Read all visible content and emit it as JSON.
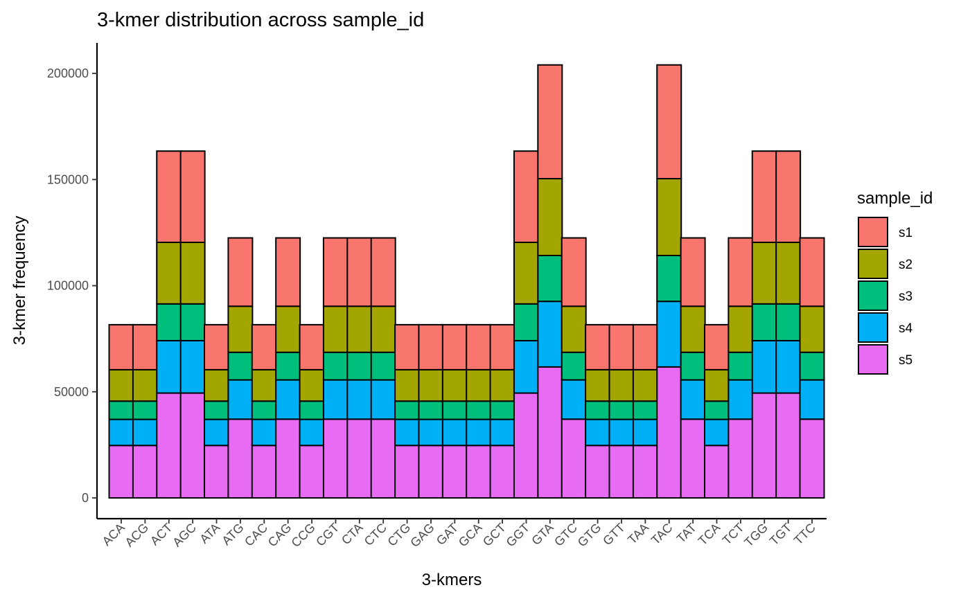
{
  "chart_data": {
    "type": "bar",
    "stacked": true,
    "title": "3-kmer distribution across sample_id",
    "xlabel": "3-kmers",
    "ylabel": "3-kmer frequency",
    "ylim": [
      -10000,
      212000
    ],
    "yticks": [
      0,
      50000,
      100000,
      150000,
      200000
    ],
    "ytick_labels": [
      "0",
      "50000",
      "100000",
      "150000",
      "200000"
    ],
    "grid": false,
    "legend": {
      "title": "sample_id",
      "position": "right"
    },
    "categories": [
      "ACA",
      "ACG",
      "ACT",
      "AGC",
      "ATA",
      "ATG",
      "CAC",
      "CAG",
      "CCG",
      "CGT",
      "CTA",
      "CTC",
      "CTG",
      "GAG",
      "GAT",
      "GCA",
      "GCT",
      "GGT",
      "GTA",
      "GTC",
      "GTG",
      "GTT",
      "TAA",
      "TAC",
      "TAT",
      "TCA",
      "TCT",
      "TGG",
      "TGT",
      "TTC"
    ],
    "series": [
      {
        "name": "s5",
        "color": "#E76BF3",
        "values": [
          24700,
          24700,
          49400,
          49400,
          24700,
          37100,
          24700,
          37100,
          24700,
          37100,
          37100,
          37100,
          24700,
          24700,
          24700,
          24700,
          24700,
          49400,
          61700,
          37100,
          24700,
          24700,
          24700,
          61700,
          37100,
          24700,
          37100,
          49400,
          49400,
          37100
        ]
      },
      {
        "name": "s4",
        "color": "#00B0F6",
        "values": [
          12300,
          12300,
          24700,
          24700,
          12300,
          18500,
          12300,
          18500,
          12300,
          18500,
          18500,
          18500,
          12300,
          12300,
          12300,
          12300,
          12300,
          24700,
          30900,
          18500,
          12300,
          12300,
          12300,
          30900,
          18500,
          12300,
          18500,
          24700,
          24700,
          18500
        ]
      },
      {
        "name": "s3",
        "color": "#00BF7D",
        "values": [
          8600,
          8600,
          17300,
          17300,
          8600,
          13000,
          8600,
          13000,
          8600,
          13000,
          13000,
          13000,
          8600,
          8600,
          8600,
          8600,
          8600,
          17300,
          21600,
          13000,
          8600,
          8600,
          8600,
          21600,
          13000,
          8600,
          13000,
          17300,
          17300,
          13000
        ]
      },
      {
        "name": "s2",
        "color": "#A3A500",
        "values": [
          14800,
          14800,
          29000,
          29000,
          14800,
          21700,
          14800,
          21700,
          14800,
          21700,
          21700,
          21700,
          14800,
          14800,
          14800,
          14800,
          14800,
          29000,
          36200,
          21700,
          14800,
          14800,
          14800,
          36200,
          21700,
          14800,
          21700,
          29000,
          29000,
          21700
        ]
      },
      {
        "name": "s1",
        "color": "#F8766D",
        "values": [
          21200,
          21200,
          43000,
          43000,
          21200,
          32200,
          21200,
          32200,
          21200,
          32200,
          32200,
          32200,
          21200,
          21200,
          21200,
          21200,
          21200,
          43000,
          53600,
          32200,
          21200,
          21200,
          21200,
          53600,
          32200,
          21200,
          32200,
          43000,
          43000,
          32200
        ]
      }
    ],
    "legend_order": [
      "s1",
      "s2",
      "s3",
      "s4",
      "s5"
    ]
  }
}
